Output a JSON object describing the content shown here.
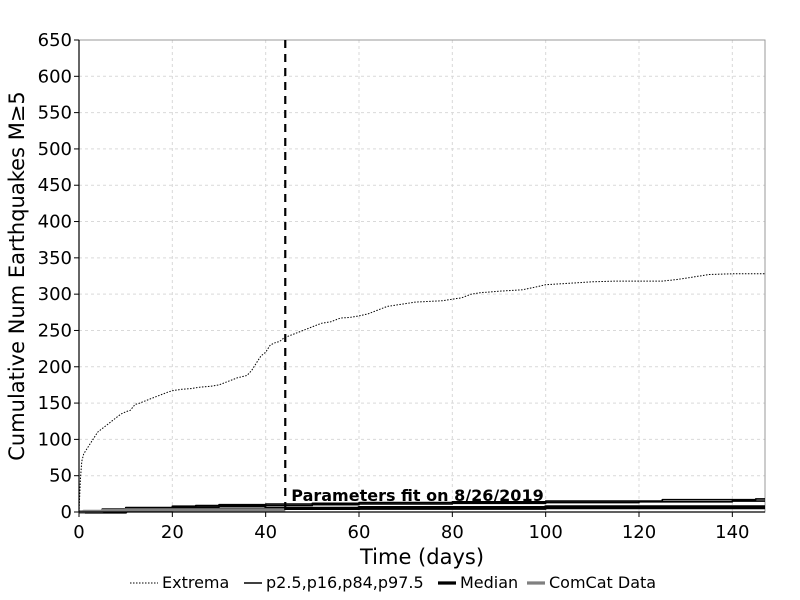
{
  "chart_data": {
    "type": "line",
    "xlabel": "Time (days)",
    "ylabel": "Cumulative Num Earthquakes M≥5",
    "xlim": [
      0,
      147
    ],
    "ylim": [
      0,
      650
    ],
    "xticks": [
      0,
      20,
      40,
      60,
      80,
      100,
      120,
      140
    ],
    "yticks": [
      0,
      50,
      100,
      150,
      200,
      250,
      300,
      350,
      400,
      450,
      500,
      550,
      600,
      650
    ],
    "grid": true,
    "legend_position": "bottom",
    "annotation": {
      "text": "Parameters fit on 8/26/2019",
      "x": 44.2
    },
    "series": [
      {
        "name": "Extrema",
        "style": "dotted",
        "color": "#000000",
        "x": [
          0,
          0.3,
          0.6,
          1,
          1.5,
          2,
          3,
          4,
          5,
          6,
          7,
          8,
          9,
          10,
          11,
          12,
          13,
          15,
          17,
          19,
          20,
          22,
          24,
          26,
          28,
          30,
          32,
          34,
          36,
          37,
          38,
          39,
          40,
          41,
          42,
          43,
          44,
          46,
          48,
          50,
          52,
          54,
          56,
          58,
          60,
          62,
          64,
          66,
          68,
          70,
          72,
          75,
          78,
          80,
          82,
          84,
          86,
          90,
          95,
          98,
          100,
          105,
          110,
          115,
          120,
          125,
          128,
          130,
          133,
          135,
          140,
          147
        ],
        "y": [
          0,
          45,
          70,
          80,
          85,
          90,
          100,
          110,
          115,
          120,
          125,
          130,
          135,
          138,
          140,
          148,
          150,
          155,
          160,
          165,
          167,
          169,
          170,
          172,
          173,
          175,
          180,
          185,
          188,
          195,
          205,
          215,
          220,
          230,
          233,
          235,
          240,
          245,
          250,
          255,
          260,
          262,
          267,
          268,
          270,
          273,
          278,
          283,
          285,
          287,
          289,
          290,
          291,
          293,
          295,
          300,
          302,
          304,
          306,
          310,
          313,
          315,
          317,
          318,
          318,
          318,
          320,
          322,
          325,
          327,
          328,
          328
        ]
      },
      {
        "name": "p2.5,p16,p84,p97.5",
        "style": "solid",
        "color": "#000000",
        "lines": [
          {
            "x": [
              0,
              10,
              20,
              30,
              40,
              60,
              80,
              100,
              120,
              140,
              147
            ],
            "y": [
              0,
              2,
              3,
              3,
              4,
              4,
              4,
              5,
              5,
              5,
              5
            ]
          },
          {
            "x": [
              0,
              10,
              20,
              30,
              40,
              60,
              80,
              100,
              120,
              140,
              147
            ],
            "y": [
              0,
              3,
              4,
              5,
              5,
              6,
              6,
              6,
              7,
              7,
              7
            ]
          },
          {
            "x": [
              0,
              5,
              10,
              20,
              30,
              40,
              50,
              60,
              80,
              100,
              120,
              140,
              147
            ],
            "y": [
              0,
              3,
              5,
              7,
              8,
              9,
              10,
              11,
              12,
              13,
              14,
              15,
              15
            ]
          },
          {
            "x": [
              0,
              5,
              10,
              20,
              25,
              30,
              40,
              50,
              60,
              80,
              100,
              120,
              125,
              140,
              145,
              147
            ],
            "y": [
              0,
              4,
              6,
              8,
              9,
              10,
              11,
              12,
              13,
              14,
              15,
              15,
              17,
              17,
              18,
              18
            ]
          }
        ]
      },
      {
        "name": "Median",
        "style": "solid-thick",
        "color": "#000000",
        "x": [
          0,
          10,
          20,
          40,
          60,
          80,
          100,
          120,
          140,
          147
        ],
        "y": [
          0,
          3,
          4,
          5,
          6,
          6,
          7,
          7,
          7,
          7
        ]
      },
      {
        "name": "ComCat Data",
        "style": "solid-thick",
        "color": "#808080",
        "x": [
          0,
          1,
          5,
          10,
          20,
          30,
          40,
          44.2
        ],
        "y": [
          0,
          1,
          2,
          3,
          3,
          3,
          3,
          3
        ]
      }
    ]
  }
}
